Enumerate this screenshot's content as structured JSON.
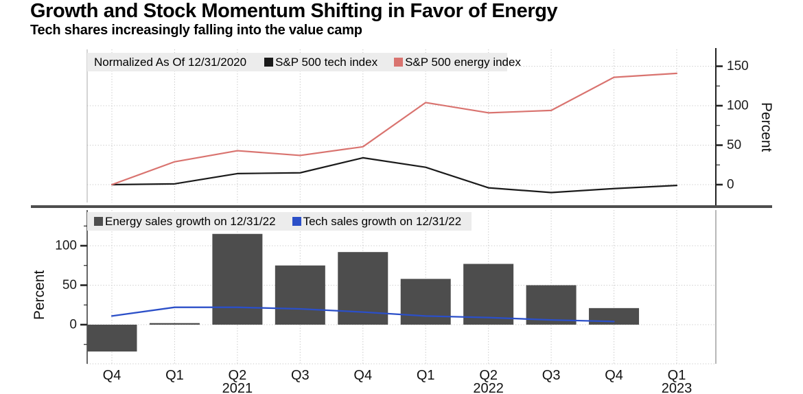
{
  "header": {
    "title": "Growth and Stock Momentum Shifting in Favor of Energy",
    "subtitle": "Tech shares increasingly falling into the value camp"
  },
  "colors": {
    "tech_index_line": "#1a1a1a",
    "energy_index_line": "#d9736f",
    "energy_sales_bar": "#4d4d4d",
    "tech_sales_line": "#2b4fc8",
    "legend_background": "#ececec",
    "grid": "#c9c9c9",
    "axis": "#222222",
    "divider": "#4d4d4d"
  },
  "x_axis": {
    "quarter_labels": [
      "Q4",
      "Q1",
      "Q2",
      "Q3",
      "Q4",
      "Q1",
      "Q2",
      "Q3",
      "Q4",
      "Q1"
    ],
    "year_labels": [
      {
        "index": 2,
        "label": "2021"
      },
      {
        "index": 6,
        "label": "2022"
      },
      {
        "index": 9,
        "label": "2023"
      }
    ]
  },
  "chart_data": [
    {
      "type": "line",
      "panel": "top",
      "note": "Normalized As Of 12/31/2020",
      "categories": [
        "Q4 2020",
        "Q1 2021",
        "Q2 2021",
        "Q3 2021",
        "Q4 2021",
        "Q1 2022",
        "Q2 2022",
        "Q3 2022",
        "Q4 2022",
        "Q1 2023"
      ],
      "series": [
        {
          "name": "S&P 500 tech index",
          "kind": "line",
          "color": "#1a1a1a",
          "values": [
            0,
            1,
            14,
            15,
            34,
            22,
            -4,
            -10,
            -5,
            -1
          ]
        },
        {
          "name": "S&P 500 energy index",
          "kind": "line",
          "color": "#d9736f",
          "values": [
            0,
            29,
            43,
            37,
            48,
            104,
            91,
            94,
            136,
            141
          ]
        }
      ],
      "ylabel": "Percent",
      "yticks": [
        0,
        50,
        100,
        150
      ],
      "yminorticks": [
        25,
        75,
        125
      ],
      "ylim": [
        -23,
        171
      ],
      "grid": true,
      "legend_position": "top-left-inside"
    },
    {
      "type": "bar",
      "panel": "bottom",
      "categories": [
        "Q4 2020",
        "Q1 2021",
        "Q2 2021",
        "Q3 2021",
        "Q4 2021",
        "Q1 2022",
        "Q2 2022",
        "Q3 2022",
        "Q4 2022",
        "Q1 2023"
      ],
      "series": [
        {
          "name": "Energy sales growth on 12/31/22",
          "kind": "bar",
          "color": "#4d4d4d",
          "values": [
            -34,
            2,
            115,
            75,
            92,
            58,
            77,
            50,
            21,
            null
          ]
        },
        {
          "name": "Tech sales growth on 12/31/22",
          "kind": "line",
          "color": "#2b4fc8",
          "values": [
            11,
            22,
            22,
            20,
            16,
            11,
            9,
            6,
            4,
            null
          ]
        }
      ],
      "ylabel": "Percent",
      "yticks": [
        0,
        50,
        100
      ],
      "yminorticks": [
        -25,
        25,
        75,
        125
      ],
      "ylim": [
        -50,
        146
      ],
      "grid": true,
      "legend_position": "top-left-inside"
    }
  ]
}
